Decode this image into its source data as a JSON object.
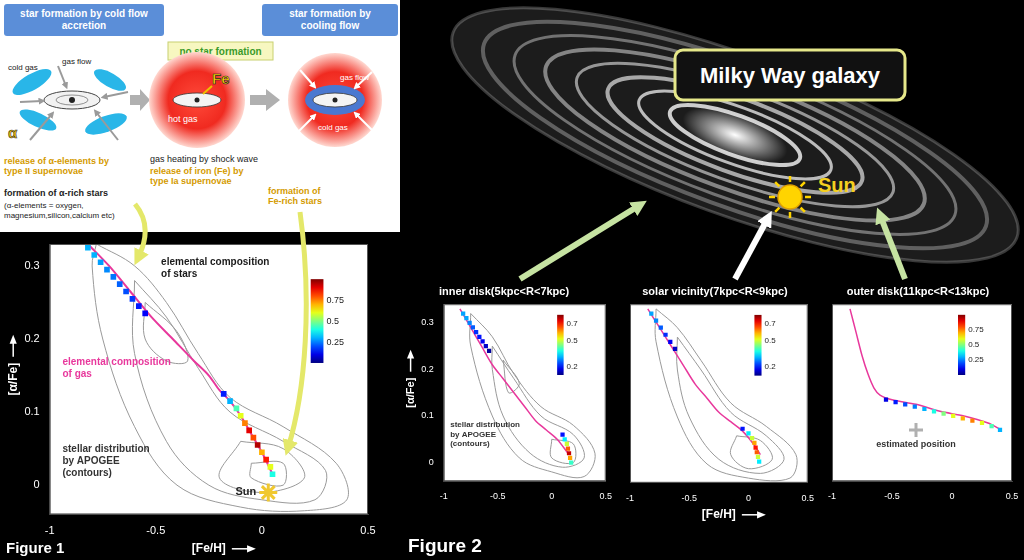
{
  "diagram": {
    "stages": [
      {
        "title": "star formation by cold flow accretion",
        "labels": [
          "gas flow",
          "cold gas",
          "α"
        ]
      },
      {
        "title": "no star formation",
        "labels": [
          "hot gas",
          "Fe"
        ]
      },
      {
        "title": "star formation by cooling flow",
        "labels": [
          "gas flow",
          "cold gas"
        ]
      }
    ],
    "notes": [
      "release of α-elements by type II supernovae",
      "formation of α-rich stars",
      "(α-elements = oxygen, magnesium,silicon,calcium etc)",
      "gas heating by shock wave",
      "release of iron (Fe) by type Ia supernovae",
      "formation of Fe-rich stars"
    ]
  },
  "galaxy": {
    "title": "Milky Way galaxy",
    "sun": "Sun"
  },
  "figure_labels": [
    "Figure 1",
    "Figure 2"
  ],
  "chart_data": [
    {
      "type": "scatter",
      "x_label": "[Fe/H]",
      "y_label": "[α/Fe]",
      "xlim": [
        -1,
        0.5
      ],
      "xticks": [
        -1,
        -0.5,
        0,
        0.5
      ],
      "ylim": [
        -0.04,
        0.33
      ],
      "yticks": [
        0,
        0.1,
        0.2,
        0.3
      ],
      "grid": false,
      "series": [
        {
          "name": "elemental composition\nof gas",
          "type": "line",
          "color": "#e8389c",
          "marker": "none",
          "line_style": "solid",
          "x": [
            -0.82,
            -0.72,
            -0.62,
            -0.52,
            -0.42,
            -0.32,
            -0.25,
            -0.2,
            -0.15,
            -0.1,
            -0.05,
            0,
            0.05
          ],
          "y": [
            0.33,
            0.3,
            0.265,
            0.23,
            0.2,
            0.17,
            0.15,
            0.13,
            0.115,
            0.095,
            0.07,
            0.045,
            0.015
          ]
        },
        {
          "name": "elemental composition\nof stars",
          "type": "scatter",
          "marker": "square",
          "x": [
            -0.82,
            -0.79,
            -0.76,
            -0.73,
            -0.7,
            -0.67,
            -0.64,
            -0.61,
            -0.58,
            -0.55,
            -0.18,
            -0.15,
            -0.12,
            -0.1,
            -0.08,
            -0.06,
            -0.04,
            -0.02,
            0,
            0.02,
            0.04,
            0.05
          ],
          "y": [
            0.325,
            0.315,
            0.305,
            0.295,
            0.285,
            0.275,
            0.265,
            0.255,
            0.245,
            0.235,
            0.125,
            0.115,
            0.105,
            0.095,
            0.085,
            0.075,
            0.065,
            0.055,
            0.045,
            0.035,
            0.025,
            0.015
          ],
          "density": [
            0.3,
            0.3,
            0.28,
            0.26,
            0.24,
            0.22,
            0.2,
            0.18,
            0.15,
            0.12,
            0.15,
            0.3,
            0.45,
            0.6,
            0.75,
            0.9,
            0.8,
            0.95,
            0.7,
            0.85,
            0.6,
            0.4
          ]
        }
      ],
      "contours": {
        "name": "stellar distribution\nby APOGEE\n(contours)",
        "color": "#9a9a9a",
        "lines": [
          {
            "x": [
              -0.78,
              -0.6,
              -0.45,
              -0.3,
              -0.15,
              0.1,
              0.35,
              0.4,
              0.2,
              -0.1,
              -0.4,
              -0.6,
              -0.75,
              -0.8,
              -0.78
            ],
            "y": [
              0.33,
              0.3,
              0.25,
              0.18,
              0.12,
              0.08,
              0.03,
              -0.02,
              -0.035,
              -0.03,
              0,
              0.08,
              0.2,
              0.3,
              0.33
            ]
          },
          {
            "x": [
              -0.6,
              -0.45,
              -0.3,
              -0.15,
              0.1,
              0.3,
              0.25,
              0,
              -0.25,
              -0.45,
              -0.6,
              -0.6
            ],
            "y": [
              0.28,
              0.23,
              0.16,
              0.1,
              0.06,
              0.02,
              -0.02,
              -0.02,
              0,
              0.06,
              0.18,
              0.28
            ]
          },
          {
            "x": [
              -0.55,
              -0.4,
              -0.35,
              -0.45,
              -0.55,
              -0.55
            ],
            "y": [
              0.25,
              0.21,
              0.17,
              0.17,
              0.2,
              0.25
            ]
          },
          {
            "x": [
              -0.1,
              0.1,
              0.2,
              0,
              -0.2,
              -0.1
            ],
            "y": [
              0.06,
              0.05,
              0.01,
              -0.01,
              0.01,
              0.06
            ]
          },
          {
            "x": [
              -0.05,
              0.1,
              0.1,
              -0.05,
              -0.05
            ],
            "y": [
              0.03,
              0.03,
              0,
              0.01,
              0.03
            ]
          }
        ]
      },
      "colorbar": {
        "range": [
          0,
          1
        ],
        "ticks": [
          0.25,
          0.5,
          0.75
        ]
      },
      "points": [
        {
          "label": "Sun",
          "x": 0.03,
          "y": -0.01,
          "marker": "star",
          "color": "#f0c830"
        }
      ]
    },
    {
      "type": "scatter",
      "title": "inner disk(5kpc<R<7kpc)",
      "y_label": "[α/Fe]",
      "xlim": [
        -1,
        0.5
      ],
      "xticks": [
        -1,
        -0.5,
        0,
        0.5
      ],
      "ylim": [
        -0.04,
        0.34
      ],
      "yticks": [
        0,
        0.1,
        0.2,
        0.3
      ],
      "grid": false,
      "series": [
        {
          "type": "line",
          "color": "#e8389c",
          "marker": "none",
          "line_style": "solid",
          "x": [
            -0.85,
            -0.75,
            -0.65,
            -0.55,
            -0.45,
            -0.35,
            -0.25,
            -0.15,
            -0.05,
            0.05,
            0.15
          ],
          "y": [
            0.33,
            0.29,
            0.25,
            0.21,
            0.18,
            0.15,
            0.12,
            0.09,
            0.07,
            0.05,
            0.02
          ]
        },
        {
          "type": "scatter",
          "marker": "square",
          "x": [
            -0.82,
            -0.79,
            -0.76,
            -0.73,
            -0.7,
            -0.67,
            -0.64,
            -0.61,
            -0.58,
            0.1,
            0.12,
            0.14,
            0.15,
            0.16,
            0.17,
            0.18
          ],
          "y": [
            0.32,
            0.31,
            0.3,
            0.29,
            0.28,
            0.27,
            0.26,
            0.25,
            0.24,
            0.06,
            0.05,
            0.04,
            0.03,
            0.02,
            0.01,
            0
          ],
          "density": [
            0.3,
            0.3,
            0.28,
            0.25,
            0.22,
            0.2,
            0.18,
            0.15,
            0.12,
            0.2,
            0.35,
            0.5,
            0.65,
            0.75,
            0.6,
            0.4
          ]
        }
      ],
      "contours": {
        "name": "stellar distribution\nby APOGEE\n(contours)",
        "color": "#9a9a9a",
        "lines": [
          {
            "x": [
              -0.75,
              -0.55,
              -0.35,
              -0.1,
              0.2,
              0.4,
              0.3,
              0,
              -0.3,
              -0.55,
              -0.75,
              -0.75
            ],
            "y": [
              0.32,
              0.27,
              0.19,
              0.12,
              0.08,
              0.02,
              -0.03,
              -0.02,
              0.01,
              0.1,
              0.25,
              0.32
            ]
          },
          {
            "x": [
              -0.55,
              -0.35,
              -0.1,
              0.2,
              0.3,
              0.1,
              -0.2,
              -0.45,
              -0.55,
              -0.55
            ],
            "y": [
              0.25,
              0.18,
              0.1,
              0.06,
              0.01,
              -0.01,
              0.02,
              0.1,
              0.2,
              0.25
            ]
          },
          {
            "x": [
              -0.45,
              -0.3,
              -0.4,
              -0.45
            ],
            "y": [
              0.22,
              0.17,
              0.15,
              0.22
            ]
          },
          {
            "x": [
              0,
              0.2,
              0.2,
              0,
              0
            ],
            "y": [
              0.05,
              0.04,
              0,
              0.01,
              0.05
            ]
          }
        ]
      },
      "colorbar": {
        "range": [
          0.1,
          0.8
        ],
        "ticks": [
          0.2,
          0.5,
          0.7
        ]
      }
    },
    {
      "type": "scatter",
      "title": "solar vicinity(7kpc<R<9kpc)",
      "x_label": "[Fe/H]",
      "xlim": [
        -1,
        0.5
      ],
      "xticks": [
        -1,
        -0.5,
        0,
        0.5
      ],
      "ylim": [
        -0.04,
        0.34
      ],
      "yticks": [
        0,
        0.1,
        0.2,
        0.3
      ],
      "grid": false,
      "tick_labels": "x",
      "series": [
        {
          "type": "line",
          "color": "#e8389c",
          "marker": "none",
          "line_style": "solid",
          "x": [
            -0.85,
            -0.75,
            -0.65,
            -0.55,
            -0.45,
            -0.35,
            -0.25,
            -0.15,
            -0.05,
            0.05,
            0.1
          ],
          "y": [
            0.33,
            0.29,
            0.25,
            0.21,
            0.17,
            0.14,
            0.11,
            0.09,
            0.07,
            0.04,
            0.02
          ]
        },
        {
          "type": "scatter",
          "marker": "square",
          "x": [
            -0.82,
            -0.78,
            -0.74,
            -0.7,
            -0.66,
            -0.62,
            -0.05,
            0,
            0.03,
            0.05,
            0.06,
            0.07,
            0.08,
            0.09
          ],
          "y": [
            0.32,
            0.305,
            0.29,
            0.275,
            0.26,
            0.245,
            0.075,
            0.065,
            0.055,
            0.045,
            0.035,
            0.025,
            0.015,
            0.005
          ],
          "density": [
            0.3,
            0.28,
            0.25,
            0.22,
            0.18,
            0.15,
            0.2,
            0.35,
            0.5,
            0.6,
            0.7,
            0.65,
            0.5,
            0.35
          ]
        }
      ],
      "contours": {
        "color": "#9a9a9a",
        "lines": [
          {
            "x": [
              -0.78,
              -0.6,
              -0.4,
              -0.15,
              0.15,
              0.4,
              0.35,
              0,
              -0.35,
              -0.6,
              -0.78,
              -0.78
            ],
            "y": [
              0.33,
              0.29,
              0.22,
              0.13,
              0.08,
              0.02,
              -0.03,
              -0.03,
              0,
              0.1,
              0.26,
              0.33
            ]
          },
          {
            "x": [
              -0.6,
              -0.4,
              -0.15,
              0.15,
              0.3,
              0.1,
              -0.25,
              -0.5,
              -0.6,
              -0.6
            ],
            "y": [
              0.27,
              0.2,
              0.11,
              0.06,
              0.01,
              -0.02,
              0.01,
              0.1,
              0.2,
              0.27
            ]
          },
          {
            "x": [
              -0.1,
              0.1,
              0.2,
              0,
              -0.15,
              -0.1
            ],
            "y": [
              0.06,
              0.05,
              0.01,
              -0.01,
              0.02,
              0.06
            ]
          }
        ]
      },
      "colorbar": {
        "range": [
          0.1,
          0.8
        ],
        "ticks": [
          0.2,
          0.5,
          0.7
        ]
      }
    },
    {
      "type": "scatter",
      "title": "outer disk(11kpc<R<13kpc)",
      "xlim": [
        -1,
        0.5
      ],
      "xticks": [
        -1,
        -0.5,
        0,
        0.5
      ],
      "ylim": [
        -0.04,
        0.34
      ],
      "yticks": [
        0,
        0.1,
        0.2,
        0.3
      ],
      "grid": false,
      "tick_labels": "x",
      "series": [
        {
          "type": "line",
          "color": "#e8389c",
          "marker": "none",
          "line_style": "solid",
          "x": [
            -0.85,
            -0.8,
            -0.75,
            -0.7,
            -0.65,
            -0.6,
            -0.5,
            -0.3,
            -0.1,
            0.1,
            0.3,
            0.4
          ],
          "y": [
            0.33,
            0.28,
            0.23,
            0.19,
            0.16,
            0.145,
            0.135,
            0.125,
            0.11,
            0.1,
            0.085,
            0.072
          ]
        },
        {
          "type": "scatter",
          "marker": "square",
          "x": [
            -0.55,
            -0.47,
            -0.39,
            -0.31,
            -0.23,
            -0.15,
            -0.07,
            0.01,
            0.09,
            0.17,
            0.25,
            0.33,
            0.4
          ],
          "y": [
            0.135,
            0.13,
            0.125,
            0.12,
            0.115,
            0.11,
            0.105,
            0.1,
            0.095,
            0.09,
            0.085,
            0.078,
            0.07
          ],
          "density": [
            0.1,
            0.15,
            0.2,
            0.25,
            0.3,
            0.4,
            0.5,
            0.6,
            0.7,
            0.75,
            0.6,
            0.45,
            0.3
          ]
        }
      ],
      "colorbar": {
        "range": [
          0,
          1
        ],
        "ticks": [
          0.25,
          0.5,
          0.75
        ]
      },
      "points": [
        {
          "label": "estimated position",
          "x": -0.3,
          "y": 0.07,
          "marker": "cross",
          "color": "#b0b0b0"
        }
      ]
    }
  ]
}
